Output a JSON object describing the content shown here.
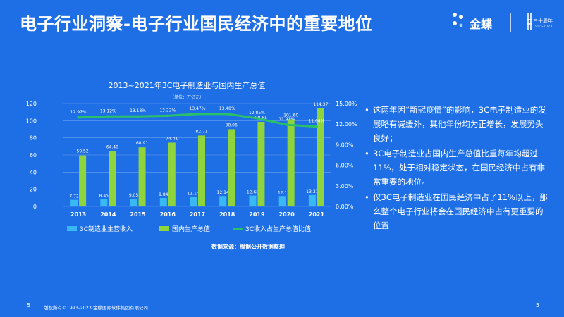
{
  "slide": {
    "title": "电子行业洞察-电子行业国民经济中的重要地位",
    "logo_text": "金蝶",
    "anniversary_text": "三十周年",
    "anniversary_years": "1993-2023",
    "source": "数据来源：根据公开数据整理",
    "footer_copyright": "版权所有©1993-2023 金蝶国际软件集团有限公司",
    "page_left": "5",
    "page_right": "5"
  },
  "bullets": [
    "这两年因“新冠疫情”的影响，3C电子制造业的发展略有减缓外，其他年份均为正增长，发展势头良好；",
    "3C电子制造业占国内生产总值比重每年均超过11%，处于相对稳定状态，在国民经济中占有非常重要的地位。",
    "仅3C电子制造业在国民经济中占了11%以上，那么整个电子行业将会在国民经济中占有更重要的位置"
  ],
  "colors": {
    "background": "#1e6fe6",
    "series_revenue": "#38b8f5",
    "series_gdp": "#8ed43c",
    "series_ratio": "#2ac06a"
  },
  "chart_data": {
    "type": "bar",
    "title": "2013~2021年3C电子制造业与国内生产总值",
    "unit": "（单位：万亿元）",
    "categories": [
      "2013",
      "2014",
      "2015",
      "2016",
      "2017",
      "2018",
      "2019",
      "2020",
      "2021"
    ],
    "series": [
      {
        "name": "3C制造业主营收入",
        "type": "bar",
        "axis": "left",
        "values": [
          7.72,
          8.45,
          9.05,
          9.84,
          11.14,
          12.14,
          12.68,
          12.1,
          13.31
        ],
        "labels": [
          "7.72",
          "8.45",
          "9.05",
          "9.84",
          "11.14",
          "12.14",
          "12.68",
          "12.1",
          "13.31"
        ]
      },
      {
        "name": "国内生产总值",
        "type": "bar",
        "axis": "left",
        "values": [
          59.52,
          64.4,
          68.91,
          74.41,
          82.71,
          90.06,
          98.65,
          101.6,
          114.37
        ],
        "labels": [
          "59.52",
          "64.40",
          "68.91",
          "74.41",
          "82.71",
          "90.06",
          "98.65",
          "101.60",
          "114.37"
        ]
      },
      {
        "name": "3C收入占生产总值比值",
        "type": "line",
        "axis": "right",
        "values": [
          12.97,
          13.12,
          13.13,
          13.22,
          13.47,
          13.48,
          12.85,
          11.91,
          11.64
        ],
        "labels": [
          "12.97%",
          "13.12%",
          "13.13%",
          "13.22%",
          "13.47%",
          "13.48%",
          "12.85%",
          "11.91%",
          "11.64%"
        ]
      }
    ],
    "ylim_left": [
      0,
      120
    ],
    "yticks_left": [
      "0",
      "20",
      "40",
      "60",
      "80",
      "100",
      "120"
    ],
    "ylim_right": [
      0,
      15
    ],
    "yticks_right": [
      "0.00%",
      "3.00%",
      "6.00%",
      "9.00%",
      "12.00%",
      "15.00%"
    ],
    "grid": true,
    "legend_position": "bottom"
  }
}
